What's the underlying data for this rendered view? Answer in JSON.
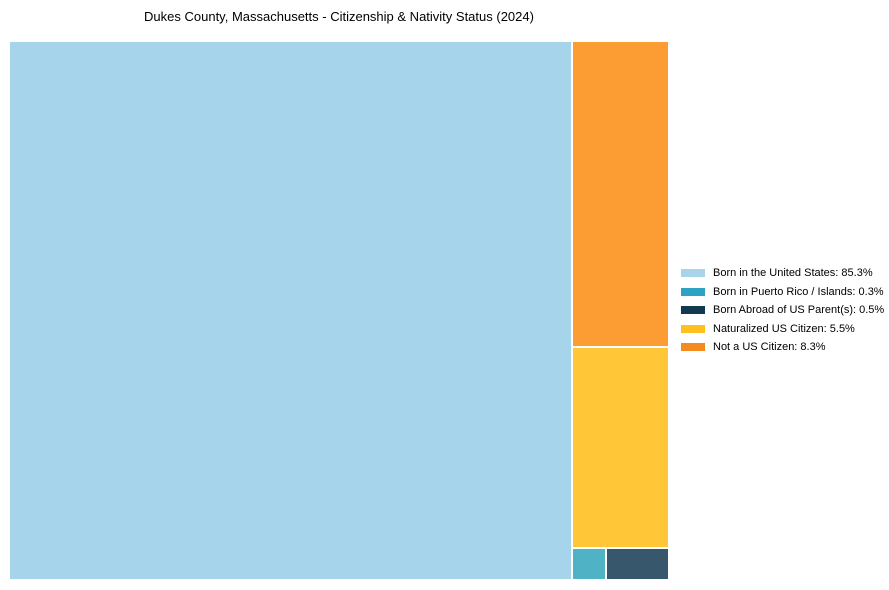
{
  "chart_data": {
    "type": "treemap",
    "title": "Dukes County, Massachusetts - Citizenship & Nativity Status (2024)",
    "categories": [
      "Born in the United States",
      "Born in Puerto Rico / Islands",
      "Born Abroad of US Parent(s)",
      "Naturalized US Citizen",
      "Not a US Citizen"
    ],
    "values": [
      85.3,
      0.3,
      0.5,
      5.5,
      8.3
    ],
    "unit": "%",
    "tile_colors": [
      "#a5d4eb",
      "#4fb3c5",
      "#36576c",
      "#ffc637",
      "#fb9d33"
    ],
    "legend_position": "right-outside",
    "grid": false
  },
  "legend": {
    "items": [
      {
        "label": "Born in the United States: 85.3%",
        "color": "#a8d3ea"
      },
      {
        "label": "Born in Puerto Rico / Islands: 0.3%",
        "color": "#2da2c2"
      },
      {
        "label": "Born Abroad of US Parent(s): 0.5%",
        "color": "#123950"
      },
      {
        "label": "Naturalized US Citizen: 5.5%",
        "color": "#ffc020"
      },
      {
        "label": "Not a US Citizen: 8.3%",
        "color": "#f58a1f"
      }
    ]
  }
}
